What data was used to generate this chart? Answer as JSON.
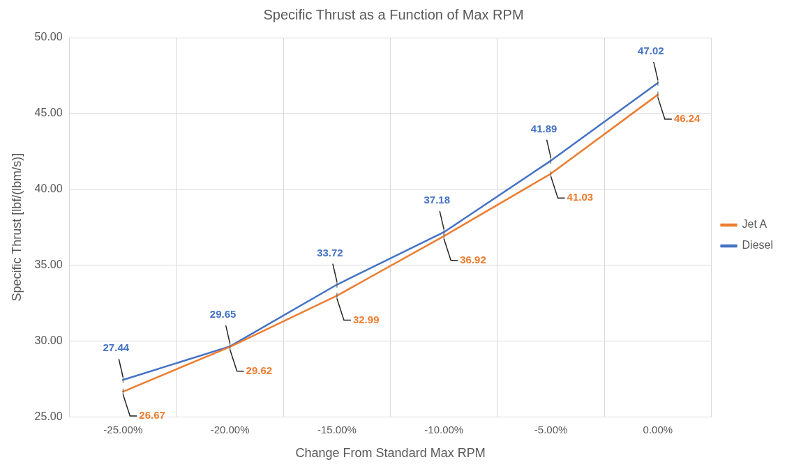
{
  "chart_data": {
    "type": "line",
    "title": "Specific Thrust as a Function of Max RPM",
    "xlabel": "Change From Standard Max RPM",
    "ylabel": "Specific Thrust [lbf/(lbm/s)]",
    "categories": [
      "-25.00%",
      "-20.00%",
      "-15.00%",
      "-10.00%",
      "-5.00%",
      "0.00%"
    ],
    "series": [
      {
        "name": "Jet A",
        "color": "#ed7d31",
        "values": [
          26.67,
          29.62,
          32.99,
          36.92,
          41.03,
          46.24
        ],
        "errors": [
          0.2,
          0.2,
          0.2,
          0.2,
          0.2,
          0.2
        ]
      },
      {
        "name": "Diesel",
        "color": "#4472c4",
        "values": [
          27.44,
          29.65,
          33.72,
          37.18,
          41.89,
          47.02
        ],
        "errors": [
          0.2,
          0.2,
          0.2,
          0.2,
          0.2,
          0.2
        ]
      }
    ],
    "ylim": [
      25,
      50
    ],
    "yticks": [
      {
        "value": 25,
        "label": "25.00"
      },
      {
        "value": 30,
        "label": "30.00"
      },
      {
        "value": 35,
        "label": "35.00"
      },
      {
        "value": 40,
        "label": "40.00"
      },
      {
        "value": 45,
        "label": "45.00"
      },
      {
        "value": 50,
        "label": "50.00"
      }
    ],
    "grid": true,
    "legend": "right",
    "marker": "none",
    "data_labels": true
  }
}
